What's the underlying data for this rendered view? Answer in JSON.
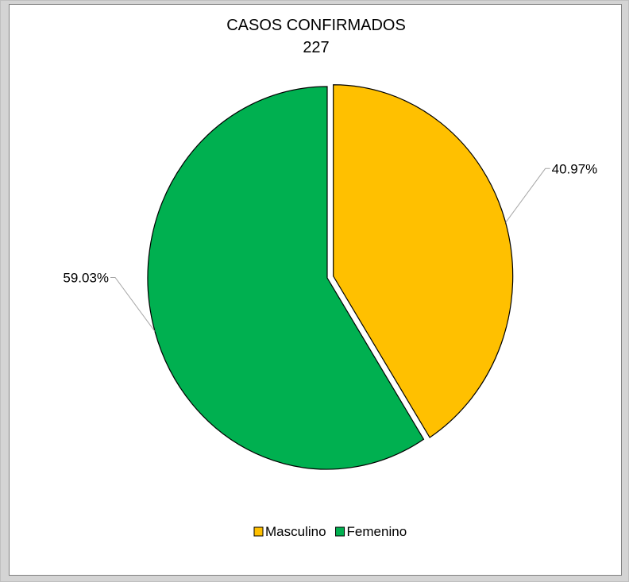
{
  "chart_data": {
    "type": "pie",
    "title": "CASOS CONFIRMADOS",
    "subtitle": "227",
    "categories": [
      "Masculino",
      "Femenino"
    ],
    "values": [
      40.97,
      59.03
    ],
    "data_labels": [
      "40.97%",
      "59.03%"
    ],
    "colors": [
      "#ffc000",
      "#00b050"
    ],
    "exploded": "Masculino",
    "legend": "bottom"
  }
}
